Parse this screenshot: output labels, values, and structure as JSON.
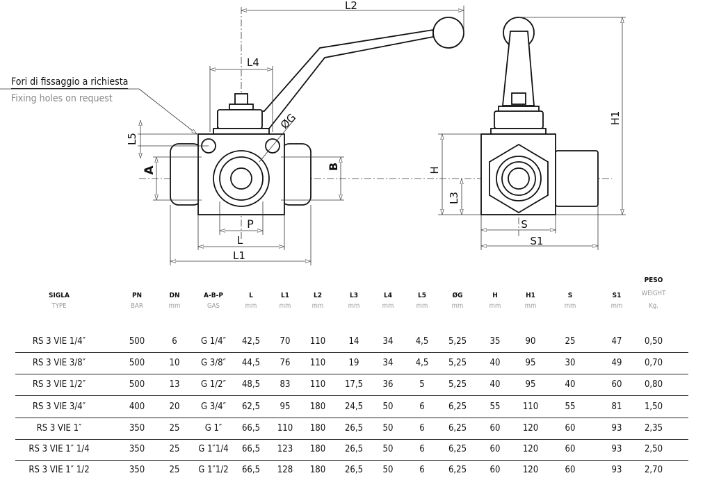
{
  "notes": {
    "italian": "Fori di fissaggio a richiesta",
    "english": "Fixing holes on request"
  },
  "dimension_labels": {
    "L2": "L2",
    "L4": "L4",
    "L5": "L5",
    "A": "A",
    "B": "B",
    "G": "ØG",
    "P": "P",
    "L": "L",
    "L1": "L1",
    "H": "H",
    "L3": "L3",
    "S": "S",
    "S1": "S1",
    "H1": "H1"
  },
  "table": {
    "peso_label": "PESO",
    "columns": [
      {
        "label": "SIGLA",
        "unit": "TYPE"
      },
      {
        "label": "PN",
        "unit": "BAR"
      },
      {
        "label": "DN",
        "unit": "mm"
      },
      {
        "label": "A-B-P",
        "unit": "GAS"
      },
      {
        "label": "L",
        "unit": "mm"
      },
      {
        "label": "L1",
        "unit": "mm"
      },
      {
        "label": "L2",
        "unit": "mm"
      },
      {
        "label": "L3",
        "unit": "mm"
      },
      {
        "label": "L4",
        "unit": "mm"
      },
      {
        "label": "L5",
        "unit": "mm"
      },
      {
        "label": "ØG",
        "unit": "mm"
      },
      {
        "label": "H",
        "unit": "mm"
      },
      {
        "label": "H1",
        "unit": "mm"
      },
      {
        "label": "S",
        "unit": "mm"
      },
      {
        "label": "S1",
        "unit": "mm"
      },
      {
        "label": "WEIGHT",
        "unit": "Kg."
      }
    ],
    "rows": [
      [
        "RS 3 VIE 1/4″",
        "500",
        "6",
        "G 1/4″",
        "42,5",
        "70",
        "110",
        "14",
        "34",
        "4,5",
        "5,25",
        "35",
        "90",
        "25",
        "47",
        "0,50"
      ],
      [
        "RS 3 VIE 3/8″",
        "500",
        "10",
        "G 3/8″",
        "44,5",
        "76",
        "110",
        "19",
        "34",
        "4,5",
        "5,25",
        "40",
        "95",
        "30",
        "49",
        "0,70"
      ],
      [
        "RS 3 VIE 1/2″",
        "500",
        "13",
        "G 1/2″",
        "48,5",
        "83",
        "110",
        "17,5",
        "36",
        "5",
        "5,25",
        "40",
        "95",
        "40",
        "60",
        "0,80"
      ],
      [
        "RS 3 VIE 3/4″",
        "400",
        "20",
        "G 3/4″",
        "62,5",
        "95",
        "180",
        "24,5",
        "50",
        "6",
        "6,25",
        "55",
        "110",
        "55",
        "81",
        "1,50"
      ],
      [
        "RS 3 VIE 1″",
        "350",
        "25",
        "G 1″",
        "66,5",
        "110",
        "180",
        "26,5",
        "50",
        "6",
        "6,25",
        "60",
        "120",
        "60",
        "93",
        "2,35"
      ],
      [
        "RS 3 VIE 1″ 1/4",
        "350",
        "25",
        "G 1″1/4",
        "66,5",
        "123",
        "180",
        "26,5",
        "50",
        "6",
        "6,25",
        "60",
        "120",
        "60",
        "93",
        "2,50"
      ],
      [
        "RS 3 VIE 1″ 1/2",
        "350",
        "25",
        "G 1″1/2",
        "66,5",
        "128",
        "180",
        "26,5",
        "50",
        "6",
        "6,25",
        "60",
        "120",
        "60",
        "93",
        "2,70"
      ]
    ]
  }
}
